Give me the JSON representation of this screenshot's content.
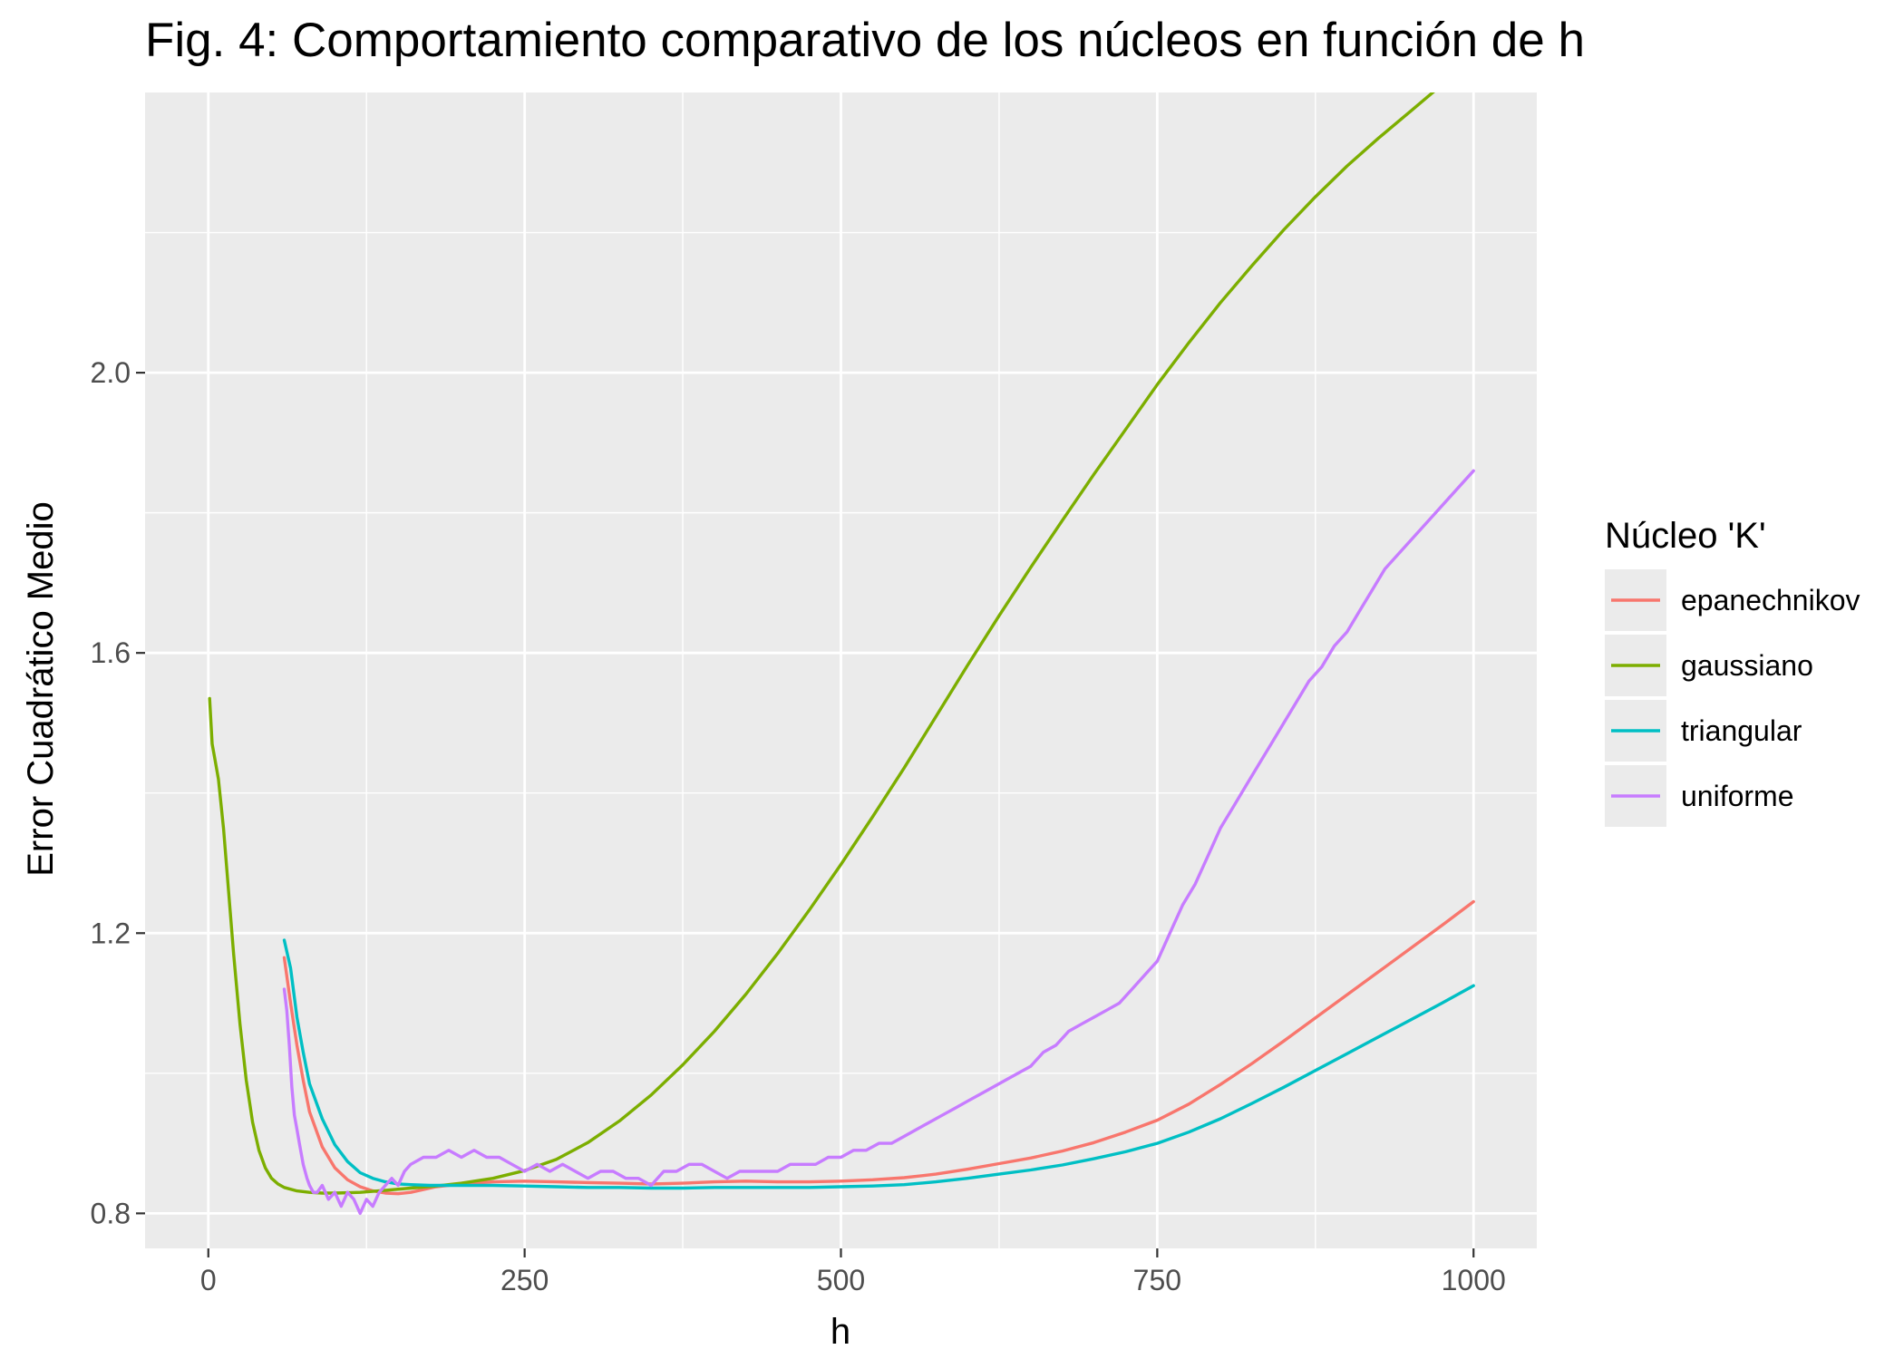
{
  "chart_data": {
    "type": "line",
    "title": "Fig. 4: Comportamiento comparativo de los núcleos en función de h",
    "xlabel": "h",
    "ylabel": "Error Cuadrático Medio",
    "xlim": [
      -50,
      1050
    ],
    "ylim": [
      0.75,
      2.4
    ],
    "x_ticks": [
      0,
      250,
      500,
      750,
      1000
    ],
    "x_tick_labels": [
      "0",
      "250",
      "500",
      "750",
      "1000"
    ],
    "y_ticks": [
      0.8,
      1.2,
      1.6,
      2.0
    ],
    "y_tick_labels": [
      "0.8",
      "1.2",
      "1.6",
      "2.0"
    ],
    "grid": true,
    "panel_background": "#ebebeb",
    "legend": {
      "title": "Núcleo 'K'",
      "position": "right"
    },
    "series": [
      {
        "name": "epanechnikov",
        "color": "#f8766d",
        "x": [
          60,
          65,
          70,
          75,
          80,
          90,
          100,
          110,
          120,
          130,
          140,
          150,
          160,
          170,
          180,
          200,
          225,
          250,
          275,
          300,
          325,
          350,
          375,
          400,
          425,
          450,
          475,
          500,
          525,
          550,
          575,
          600,
          625,
          650,
          675,
          700,
          725,
          750,
          775,
          800,
          825,
          850,
          875,
          900,
          925,
          950,
          975,
          1000
        ],
        "y": [
          1.165,
          1.1,
          1.04,
          0.99,
          0.945,
          0.895,
          0.865,
          0.848,
          0.838,
          0.832,
          0.829,
          0.828,
          0.83,
          0.834,
          0.838,
          0.842,
          0.845,
          0.846,
          0.845,
          0.844,
          0.843,
          0.842,
          0.843,
          0.845,
          0.846,
          0.845,
          0.845,
          0.846,
          0.848,
          0.851,
          0.856,
          0.863,
          0.871,
          0.879,
          0.889,
          0.901,
          0.916,
          0.933,
          0.956,
          0.984,
          1.014,
          1.046,
          1.079,
          1.112,
          1.145,
          1.178,
          1.211,
          1.245
        ]
      },
      {
        "name": "gaussiano",
        "color": "#7cae00",
        "x": [
          1,
          3,
          5,
          8,
          12,
          16,
          20,
          25,
          30,
          35,
          40,
          45,
          50,
          55,
          60,
          70,
          80,
          90,
          100,
          120,
          140,
          160,
          180,
          200,
          225,
          250,
          275,
          300,
          325,
          350,
          375,
          400,
          425,
          450,
          475,
          500,
          525,
          550,
          575,
          600,
          625,
          650,
          675,
          700,
          725,
          750,
          775,
          800,
          825,
          850,
          875,
          900,
          925,
          950,
          975,
          1000
        ],
        "y": [
          1.535,
          1.47,
          1.45,
          1.42,
          1.35,
          1.26,
          1.17,
          1.07,
          0.99,
          0.93,
          0.89,
          0.865,
          0.85,
          0.842,
          0.837,
          0.832,
          0.83,
          0.829,
          0.829,
          0.83,
          0.833,
          0.836,
          0.839,
          0.843,
          0.85,
          0.861,
          0.877,
          0.901,
          0.932,
          0.969,
          1.012,
          1.06,
          1.113,
          1.171,
          1.233,
          1.298,
          1.366,
          1.436,
          1.509,
          1.582,
          1.653,
          1.722,
          1.789,
          1.855,
          1.919,
          1.983,
          2.043,
          2.1,
          2.153,
          2.204,
          2.251,
          2.295,
          2.335,
          2.373,
          2.411,
          2.448
        ]
      },
      {
        "name": "triangular",
        "color": "#00bfc4",
        "x": [
          60,
          65,
          70,
          75,
          80,
          90,
          100,
          110,
          120,
          130,
          140,
          150,
          160,
          175,
          200,
          225,
          250,
          275,
          300,
          325,
          350,
          375,
          400,
          425,
          450,
          475,
          500,
          525,
          550,
          575,
          600,
          625,
          650,
          675,
          700,
          725,
          750,
          775,
          800,
          825,
          850,
          875,
          900,
          925,
          950,
          975,
          1000
        ],
        "y": [
          1.19,
          1.15,
          1.08,
          1.03,
          0.985,
          0.935,
          0.898,
          0.874,
          0.858,
          0.85,
          0.845,
          0.842,
          0.841,
          0.84,
          0.84,
          0.84,
          0.839,
          0.838,
          0.837,
          0.837,
          0.836,
          0.836,
          0.837,
          0.837,
          0.837,
          0.837,
          0.838,
          0.839,
          0.841,
          0.845,
          0.85,
          0.856,
          0.862,
          0.869,
          0.878,
          0.888,
          0.9,
          0.916,
          0.935,
          0.957,
          0.98,
          1.004,
          1.028,
          1.052,
          1.076,
          1.1,
          1.125
        ]
      },
      {
        "name": "uniforme",
        "color": "#c77cff",
        "x": [
          60,
          62,
          64,
          66,
          68,
          70,
          72,
          75,
          78,
          80,
          83,
          86,
          90,
          95,
          100,
          105,
          110,
          115,
          120,
          125,
          130,
          135,
          140,
          145,
          150,
          155,
          160,
          170,
          180,
          190,
          200,
          210,
          220,
          230,
          240,
          250,
          260,
          270,
          280,
          290,
          300,
          310,
          320,
          330,
          340,
          350,
          360,
          370,
          380,
          390,
          400,
          410,
          420,
          430,
          440,
          450,
          460,
          470,
          480,
          490,
          500,
          510,
          520,
          530,
          540,
          550,
          560,
          570,
          580,
          590,
          600,
          610,
          620,
          630,
          640,
          650,
          660,
          670,
          680,
          690,
          700,
          710,
          720,
          730,
          740,
          750,
          760,
          770,
          780,
          790,
          800,
          810,
          820,
          830,
          840,
          850,
          860,
          870,
          880,
          890,
          900,
          910,
          920,
          930,
          940,
          950,
          960,
          970,
          980,
          990,
          1000
        ],
        "y": [
          1.12,
          1.09,
          1.04,
          0.98,
          0.94,
          0.92,
          0.9,
          0.87,
          0.85,
          0.84,
          0.83,
          0.83,
          0.84,
          0.82,
          0.83,
          0.81,
          0.83,
          0.82,
          0.8,
          0.82,
          0.81,
          0.83,
          0.84,
          0.85,
          0.84,
          0.86,
          0.87,
          0.88,
          0.88,
          0.89,
          0.88,
          0.89,
          0.88,
          0.88,
          0.87,
          0.86,
          0.87,
          0.86,
          0.87,
          0.86,
          0.85,
          0.86,
          0.86,
          0.85,
          0.85,
          0.84,
          0.86,
          0.86,
          0.87,
          0.87,
          0.86,
          0.85,
          0.86,
          0.86,
          0.86,
          0.86,
          0.87,
          0.87,
          0.87,
          0.88,
          0.88,
          0.89,
          0.89,
          0.9,
          0.9,
          0.91,
          0.92,
          0.93,
          0.94,
          0.95,
          0.96,
          0.97,
          0.98,
          0.99,
          1.0,
          1.01,
          1.03,
          1.04,
          1.06,
          1.07,
          1.08,
          1.09,
          1.1,
          1.12,
          1.14,
          1.16,
          1.2,
          1.24,
          1.27,
          1.31,
          1.35,
          1.38,
          1.41,
          1.44,
          1.47,
          1.5,
          1.53,
          1.56,
          1.58,
          1.61,
          1.63,
          1.66,
          1.69,
          1.72,
          1.74,
          1.76,
          1.78,
          1.8,
          1.82,
          1.84,
          1.86
        ]
      }
    ]
  }
}
